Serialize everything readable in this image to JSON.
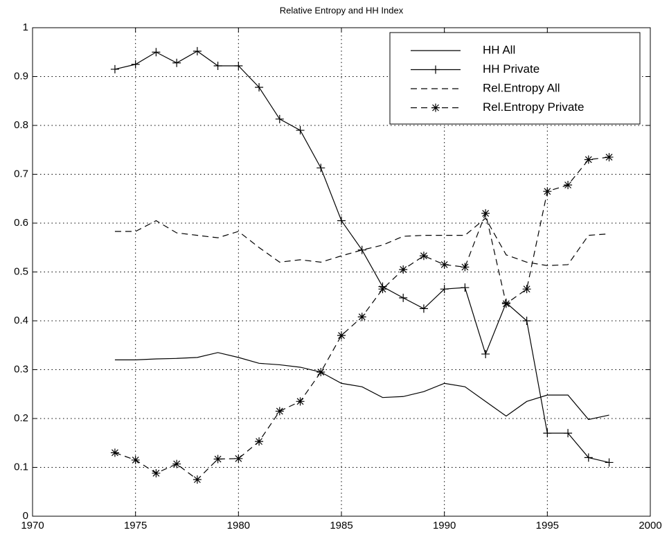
{
  "chart_data": {
    "type": "line",
    "title": "Relative Entropy and HH Index",
    "x": [
      1974,
      1975,
      1976,
      1977,
      1978,
      1979,
      1980,
      1981,
      1982,
      1983,
      1984,
      1985,
      1986,
      1987,
      1988,
      1989,
      1990,
      1991,
      1992,
      1993,
      1994,
      1995,
      1996,
      1997,
      1998
    ],
    "series": [
      {
        "name": "HH All",
        "color": "#000000",
        "dash": false,
        "marker": "none",
        "values": [
          0.32,
          0.32,
          0.322,
          0.323,
          0.325,
          0.335,
          0.325,
          0.313,
          0.31,
          0.305,
          0.295,
          0.272,
          0.265,
          0.243,
          0.245,
          0.255,
          0.272,
          0.265,
          0.235,
          0.205,
          0.235,
          0.248,
          0.248,
          0.198,
          0.207
        ]
      },
      {
        "name": "HH Private",
        "color": "#000000",
        "dash": false,
        "marker": "+",
        "values": [
          0.915,
          0.925,
          0.95,
          0.928,
          0.952,
          0.922,
          0.922,
          0.878,
          0.813,
          0.79,
          0.713,
          0.605,
          0.545,
          0.47,
          0.447,
          0.425,
          0.465,
          0.468,
          0.332,
          0.437,
          0.4,
          0.17,
          0.17,
          0.12,
          0.11
        ]
      },
      {
        "name": "Rel.Entropy All",
        "color": "#000000",
        "dash": true,
        "marker": "none",
        "values": [
          0.583,
          0.583,
          0.605,
          0.58,
          0.575,
          0.57,
          0.583,
          0.55,
          0.52,
          0.525,
          0.52,
          0.533,
          0.545,
          0.555,
          0.573,
          0.575,
          0.575,
          0.575,
          0.61,
          0.535,
          0.52,
          0.513,
          0.515,
          0.575,
          0.578
        ]
      },
      {
        "name": "Rel.Entropy Private",
        "color": "#000000",
        "dash": true,
        "marker": "*",
        "values": [
          0.13,
          0.115,
          0.088,
          0.107,
          0.075,
          0.117,
          0.118,
          0.153,
          0.215,
          0.235,
          0.295,
          0.37,
          0.408,
          0.465,
          0.505,
          0.533,
          0.515,
          0.51,
          0.62,
          0.435,
          0.465,
          0.665,
          0.678,
          0.73,
          0.735
        ]
      }
    ],
    "xlim": [
      1970,
      2000
    ],
    "xticks": [
      1970,
      1975,
      1980,
      1985,
      1990,
      1995,
      2000
    ],
    "ylim": [
      0,
      1
    ],
    "yticks": [
      0,
      0.1,
      0.2,
      0.3,
      0.4,
      0.5,
      0.6,
      0.7,
      0.8,
      0.9,
      1
    ],
    "grid": true,
    "legend": "upper right"
  }
}
